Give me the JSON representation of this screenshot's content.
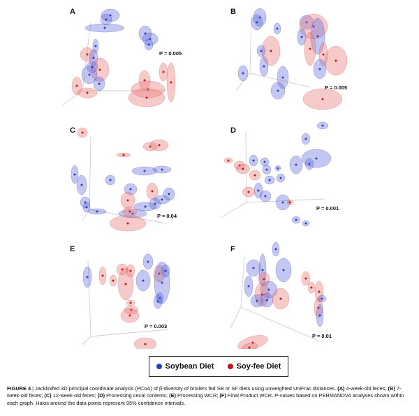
{
  "colors": {
    "soybean": "#2a3fb8",
    "soyfee": "#c41515"
  },
  "panels": [
    {
      "label": "A",
      "pvalue": "P = 0.005"
    },
    {
      "label": "B",
      "pvalue": "P = 0.005"
    },
    {
      "label": "C",
      "pvalue": "P = 0.04"
    },
    {
      "label": "D",
      "pvalue": "P = 0.001"
    },
    {
      "label": "E",
      "pvalue": "P = 0.003"
    },
    {
      "label": "F",
      "pvalue": "P = 0.01"
    }
  ],
  "legend": {
    "soybean": "Soybean Diet",
    "soyfee": "Soy-fee Diet"
  },
  "caption": {
    "figure_no": "FIGURE 4",
    "text1": " | Jackknifed 3D principal coordinate analysis (PCoA) of β-diversity of broilers fed SB or SF diets using unweighted UniFrac distances. ",
    "a_lab": "(A)",
    "a_txt": " 4-week-old feces; ",
    "b_lab": "(B)",
    "b_txt": " 7-week-old feces; ",
    "c_lab": "(C)",
    "c_txt": " 12-week-old feces; ",
    "d_lab": "(D)",
    "d_txt": " Processing cecal contents; ",
    "e_lab": "(E)",
    "e_txt": " Processing WCR; ",
    "f_lab": "(F)",
    "f_txt": " Final Product WCR. ",
    "p_word": "P",
    "text2": "-values based on PERMANOVA analyses shown within each graph. Halos around the data points represent 95% confidence intervals."
  }
}
